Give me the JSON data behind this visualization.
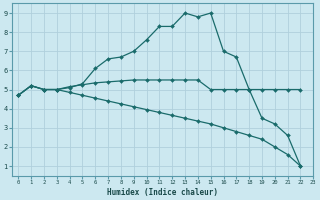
{
  "xlabel": "Humidex (Indice chaleur)",
  "bg_color": "#cce8f0",
  "grid_color": "#b0d0dc",
  "line_color": "#1a6b6b",
  "spine_color": "#5a9aaa",
  "xlim": [
    -0.5,
    23
  ],
  "ylim": [
    0.5,
    9.5
  ],
  "xticks": [
    0,
    1,
    2,
    3,
    4,
    5,
    6,
    7,
    8,
    9,
    10,
    11,
    12,
    13,
    14,
    15,
    16,
    17,
    18,
    19,
    20,
    21,
    22,
    23
  ],
  "yticks": [
    1,
    2,
    3,
    4,
    5,
    6,
    7,
    8,
    9
  ],
  "line1_x": [
    0,
    1,
    2,
    3,
    4,
    5,
    6,
    7,
    8,
    9,
    10,
    11,
    12,
    13,
    14,
    15,
    16,
    17,
    18,
    19,
    20,
    21,
    22
  ],
  "line1_y": [
    4.7,
    5.2,
    5.0,
    5.0,
    5.1,
    5.3,
    6.1,
    6.6,
    6.7,
    7.0,
    7.6,
    8.3,
    8.3,
    9.0,
    8.8,
    9.0,
    7.0,
    6.7,
    5.0,
    3.5,
    3.2,
    2.6,
    1.0
  ],
  "line2_x": [
    0,
    1,
    2,
    3,
    4,
    5,
    6,
    7,
    8,
    9,
    10,
    11,
    12,
    13,
    14,
    15,
    16,
    17,
    18,
    19,
    20,
    21,
    22
  ],
  "line2_y": [
    4.7,
    5.2,
    5.0,
    5.0,
    5.15,
    5.25,
    5.35,
    5.4,
    5.45,
    5.5,
    5.5,
    5.5,
    5.5,
    5.5,
    5.5,
    5.0,
    5.0,
    5.0,
    5.0,
    5.0,
    5.0,
    5.0,
    5.0
  ],
  "line3_x": [
    0,
    1,
    2,
    3,
    4,
    5,
    6,
    7,
    8,
    9,
    10,
    11,
    12,
    13,
    14,
    15,
    16,
    17,
    18,
    19,
    20,
    21,
    22
  ],
  "line3_y": [
    4.7,
    5.2,
    5.0,
    5.0,
    4.85,
    4.7,
    4.55,
    4.4,
    4.25,
    4.1,
    3.95,
    3.8,
    3.65,
    3.5,
    3.35,
    3.2,
    3.0,
    2.8,
    2.6,
    2.4,
    2.0,
    1.6,
    1.0
  ]
}
